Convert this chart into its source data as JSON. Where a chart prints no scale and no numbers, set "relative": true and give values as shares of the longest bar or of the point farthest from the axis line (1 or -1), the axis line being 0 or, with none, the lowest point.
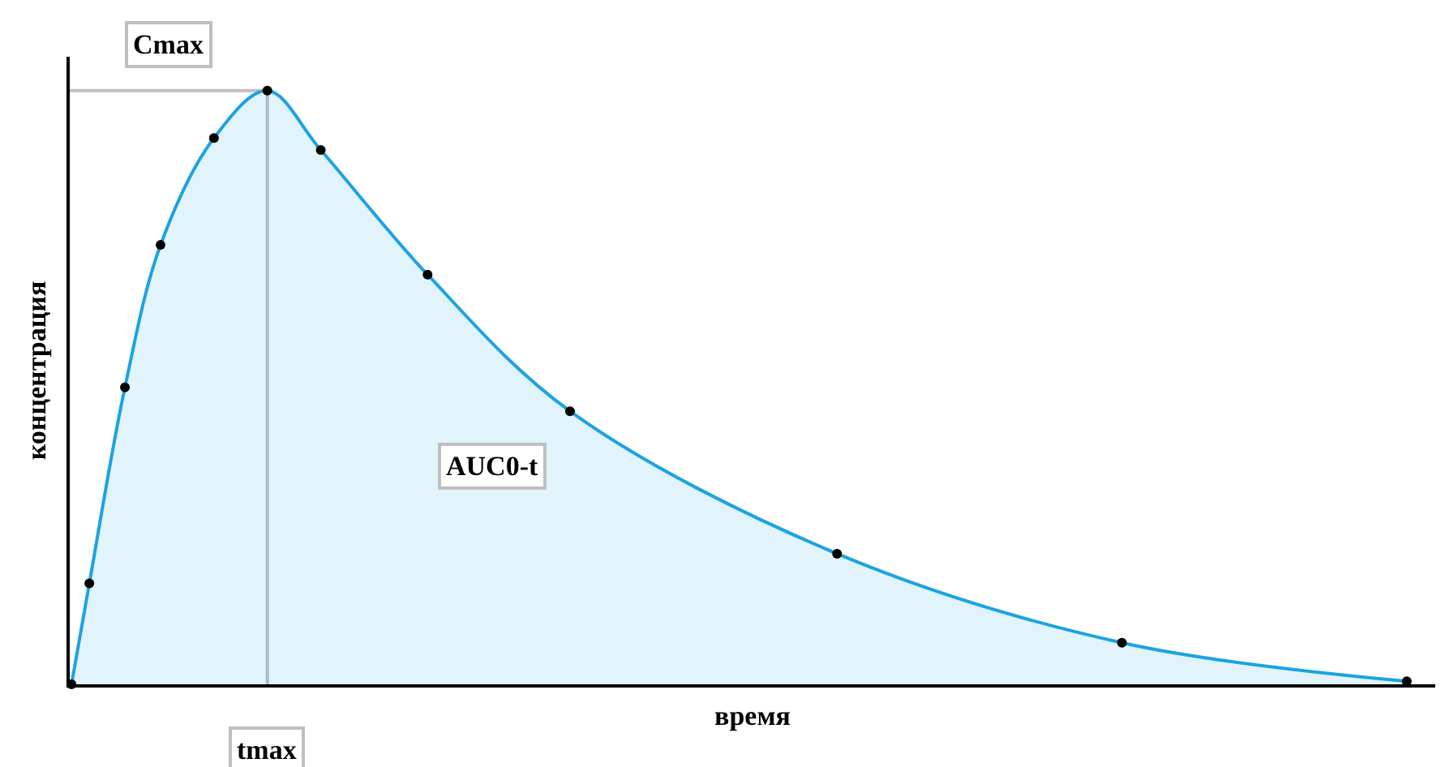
{
  "chart_data": {
    "type": "area",
    "relative": true,
    "xlabel": "время",
    "ylabel": "концентрация",
    "categories": [
      null,
      null,
      null,
      null,
      null,
      null,
      null,
      null,
      null,
      null,
      null,
      null,
      null,
      null,
      null,
      null,
      null,
      null,
      null,
      null,
      null,
      null,
      null,
      null,
      null,
      null,
      null,
      null,
      null,
      null,
      null,
      null,
      null,
      null,
      null,
      null,
      null,
      null,
      null,
      null,
      null,
      null,
      null,
      null,
      null,
      null,
      null,
      null,
      null,
      null,
      null,
      null,
      null,
      null,
      null,
      null,
      null,
      null,
      null,
      null,
      null,
      null,
      null,
      null,
      null,
      null,
      null,
      null,
      null,
      null,
      null,
      null,
      null,
      null,
      null,
      null,
      null
    ],
    "series": [
      {
        "color": "#1ba3e2",
        "values": [
          0,
          0.17,
          null,
          0.5,
          null,
          0.74,
          null,
          null,
          0.92,
          null,
          null,
          1,
          null,
          null,
          0.9,
          null,
          null,
          null,
          null,
          null,
          0.69,
          null,
          null,
          null,
          null,
          null,
          null,
          null,
          0.46,
          null,
          null,
          null,
          null,
          null,
          null,
          null,
          null,
          null,
          null,
          null,
          null,
          null,
          null,
          0.22,
          null,
          null,
          null,
          null,
          null,
          null,
          null,
          null,
          null,
          null,
          null,
          null,
          null,
          null,
          null,
          0.07,
          null,
          null,
          null,
          null,
          null,
          null,
          null,
          null,
          null,
          null,
          null,
          null,
          null,
          null,
          null,
          0.005,
          null
        ]
      }
    ],
    "marker": "circle",
    "ref_lines": [
      {
        "axis": "y",
        "value": 1,
        "label": "Cmax",
        "color": "#bfbfbf"
      }
    ],
    "annotations": [
      "AUC0-t",
      "tmax"
    ],
    "tick_labels": false,
    "grid": false
  }
}
